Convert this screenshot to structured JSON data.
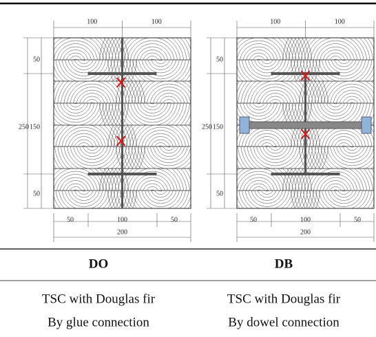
{
  "panels": [
    {
      "dims": {
        "top": [
          100,
          100
        ],
        "left_total": 250,
        "left": [
          50,
          150,
          50
        ],
        "bottom": [
          50,
          100,
          50
        ],
        "bottom_total": 200
      }
    },
    {
      "dims": {
        "top": [
          100,
          100
        ],
        "left_total": 250,
        "left": [
          50,
          150,
          50
        ],
        "bottom": [
          50,
          100,
          50
        ],
        "bottom_total": 200
      }
    }
  ],
  "table": {
    "header": [
      "DO",
      "DB"
    ],
    "rows": [
      [
        "TSC with Douglas fir",
        "TSC with Douglas fir"
      ],
      [
        "By glue connection",
        "By dowel connection"
      ]
    ]
  }
}
